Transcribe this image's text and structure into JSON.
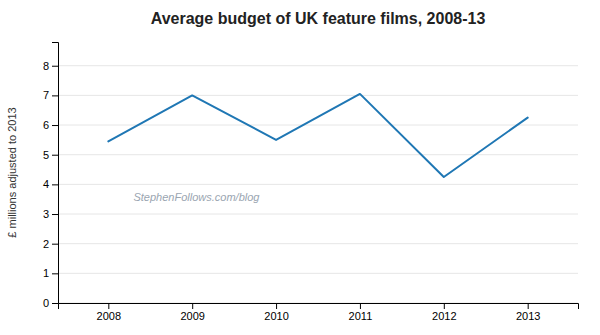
{
  "chart_data": {
    "type": "line",
    "title": "Average budget of UK feature films, 2008-13",
    "ylabel": "£ millions adjusted to 2013",
    "x": [
      2008,
      2009,
      2010,
      2011,
      2012,
      2013
    ],
    "values": [
      5.45,
      7.0,
      5.5,
      7.05,
      4.25,
      6.25
    ],
    "xlim": [
      2007.4,
      2013.6
    ],
    "xticks": [
      2008,
      2009,
      2010,
      2011,
      2012,
      2013
    ],
    "ylim": [
      0,
      8.8
    ],
    "yticks": [
      0,
      1,
      2,
      3,
      4,
      5,
      6,
      7,
      8
    ],
    "grid": true,
    "annotations": [
      {
        "text": "StephenFollows.com/blog",
        "x": 2008.3,
        "y": 3.45
      }
    ]
  }
}
